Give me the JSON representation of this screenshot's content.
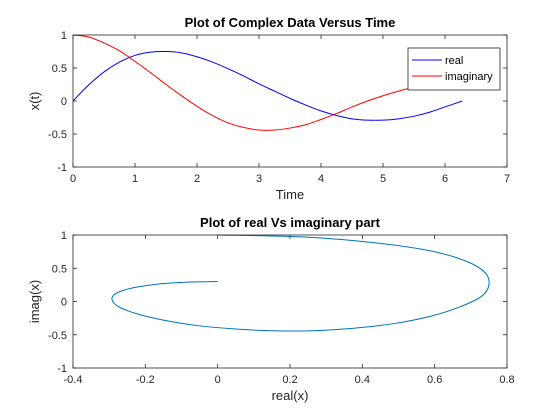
{
  "chart_data": [
    {
      "type": "line",
      "title": "Plot of Complex Data Versus Time",
      "xlabel": "Time",
      "ylabel": "x(t)",
      "xlim": [
        0,
        7
      ],
      "ylim": [
        -1,
        1
      ],
      "xticks": [
        "0",
        "1",
        "2",
        "3",
        "4",
        "5",
        "6",
        "7"
      ],
      "yticks": [
        "-1",
        "-0.5",
        "0",
        "0.5",
        "1"
      ],
      "grid": false,
      "legend_position": "top-right",
      "series": [
        {
          "name": "real",
          "color": "#0000ff",
          "x": [
            0,
            0.25,
            0.5,
            0.75,
            1.0,
            1.25,
            1.5,
            1.75,
            2.0,
            2.25,
            2.5,
            2.75,
            3.0,
            3.25,
            3.5,
            3.75,
            4.0,
            4.25,
            4.5,
            4.75,
            5.0,
            5.25,
            5.5,
            5.75,
            6.0,
            6.28
          ],
          "y": [
            0,
            0.24,
            0.44,
            0.59,
            0.69,
            0.74,
            0.75,
            0.73,
            0.67,
            0.59,
            0.49,
            0.38,
            0.26,
            0.15,
            0.04,
            -0.06,
            -0.15,
            -0.22,
            -0.27,
            -0.29,
            -0.29,
            -0.27,
            -0.23,
            -0.17,
            -0.09,
            0.0
          ]
        },
        {
          "name": "imaginary",
          "color": "#ff0000",
          "x": [
            0,
            0.25,
            0.5,
            0.75,
            1.0,
            1.25,
            1.5,
            1.75,
            2.0,
            2.25,
            2.5,
            2.75,
            3.0,
            3.25,
            3.5,
            3.75,
            4.0,
            4.25,
            4.5,
            4.75,
            5.0,
            5.25,
            5.5,
            5.75,
            6.0,
            6.28
          ],
          "y": [
            1.0,
            0.97,
            0.88,
            0.76,
            0.6,
            0.43,
            0.25,
            0.08,
            -0.08,
            -0.22,
            -0.33,
            -0.4,
            -0.44,
            -0.44,
            -0.41,
            -0.36,
            -0.28,
            -0.19,
            -0.09,
            0.0,
            0.08,
            0.15,
            0.21,
            0.26,
            0.29,
            0.3
          ]
        }
      ]
    },
    {
      "type": "line",
      "title": "Plot of real Vs imaginary part",
      "xlabel": "real(x)",
      "ylabel": "imag(x)",
      "xlim": [
        -0.4,
        0.8
      ],
      "ylim": [
        -1,
        1
      ],
      "xticks": [
        "-0.4",
        "-0.2",
        "0",
        "0.2",
        "0.4",
        "0.6",
        "0.8"
      ],
      "yticks": [
        "-1",
        "-0.5",
        "0",
        "0.5",
        "1"
      ],
      "grid": false,
      "series": [
        {
          "color": "#0072bd",
          "x": [
            0,
            0.24,
            0.44,
            0.59,
            0.69,
            0.74,
            0.75,
            0.73,
            0.67,
            0.59,
            0.49,
            0.38,
            0.26,
            0.15,
            0.04,
            -0.06,
            -0.15,
            -0.22,
            -0.27,
            -0.29,
            -0.29,
            -0.27,
            -0.23,
            -0.17,
            -0.09,
            0.0
          ],
          "y": [
            1.0,
            0.97,
            0.88,
            0.76,
            0.6,
            0.43,
            0.25,
            0.08,
            -0.08,
            -0.22,
            -0.33,
            -0.4,
            -0.44,
            -0.44,
            -0.41,
            -0.36,
            -0.28,
            -0.19,
            -0.09,
            0.0,
            0.08,
            0.15,
            0.21,
            0.26,
            0.29,
            0.3
          ]
        }
      ]
    }
  ]
}
